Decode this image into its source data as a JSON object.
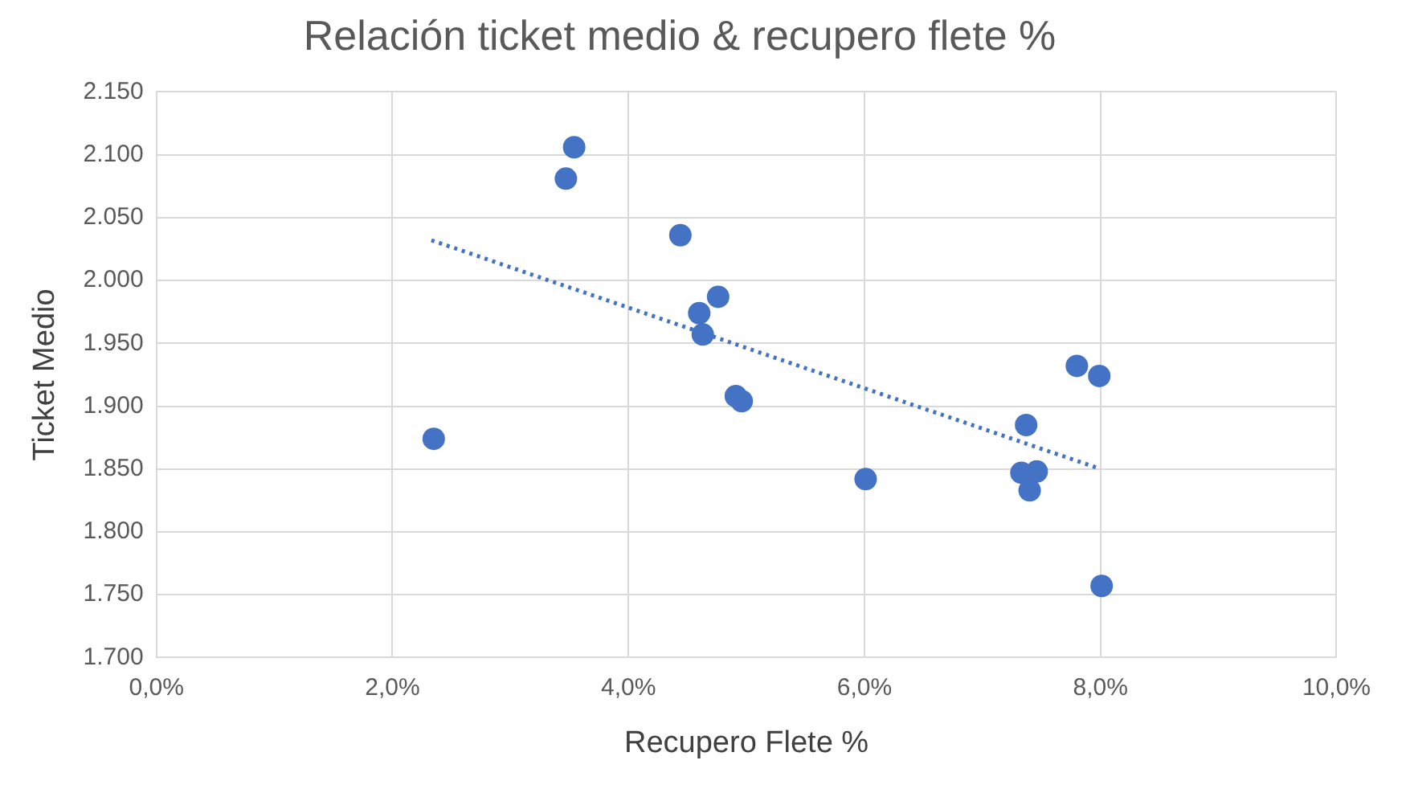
{
  "chart_data": {
    "type": "scatter",
    "title": "Relación ticket medio & recupero flete %",
    "xlabel": "Recupero Flete %",
    "ylabel": "Ticket Medio",
    "xlim": [
      0,
      10
    ],
    "xticks": [
      {
        "value": 0,
        "label": "0,0%"
      },
      {
        "value": 2,
        "label": "2,0%"
      },
      {
        "value": 4,
        "label": "4,0%"
      },
      {
        "value": 6,
        "label": "6,0%"
      },
      {
        "value": 8,
        "label": "8,0%"
      },
      {
        "value": 10,
        "label": "10,0%"
      }
    ],
    "ylim": [
      1700,
      2150
    ],
    "yticks": [
      {
        "value": 1700,
        "label": "1.700"
      },
      {
        "value": 1750,
        "label": "1.750"
      },
      {
        "value": 1800,
        "label": "1.800"
      },
      {
        "value": 1850,
        "label": "1.850"
      },
      {
        "value": 1900,
        "label": "1.900"
      },
      {
        "value": 1950,
        "label": "1.950"
      },
      {
        "value": 2000,
        "label": "2.000"
      },
      {
        "value": 2050,
        "label": "2.050"
      },
      {
        "value": 2100,
        "label": "2.100"
      },
      {
        "value": 2150,
        "label": "2.150"
      }
    ],
    "grid": true,
    "legend": false,
    "series": [
      {
        "color": "#4472c4",
        "marker": "circle",
        "x": [
          2.35,
          3.54,
          3.47,
          4.44,
          4.76,
          4.6,
          4.63,
          4.91,
          4.96,
          6.01,
          7.8,
          7.99,
          7.37,
          7.33,
          7.46,
          7.4,
          8.01
        ],
        "values": [
          1874,
          2106,
          2081,
          2036,
          1987,
          1974,
          1957,
          1908,
          1904,
          1842,
          1932,
          1924,
          1885,
          1847,
          1848,
          1833,
          1757
        ]
      },
      {
        "type": "line",
        "color": "#4472c4",
        "line_style": "dotted",
        "marker": "none",
        "x": [
          2.33,
          7.97
        ],
        "values": [
          2032,
          1851
        ]
      }
    ]
  }
}
